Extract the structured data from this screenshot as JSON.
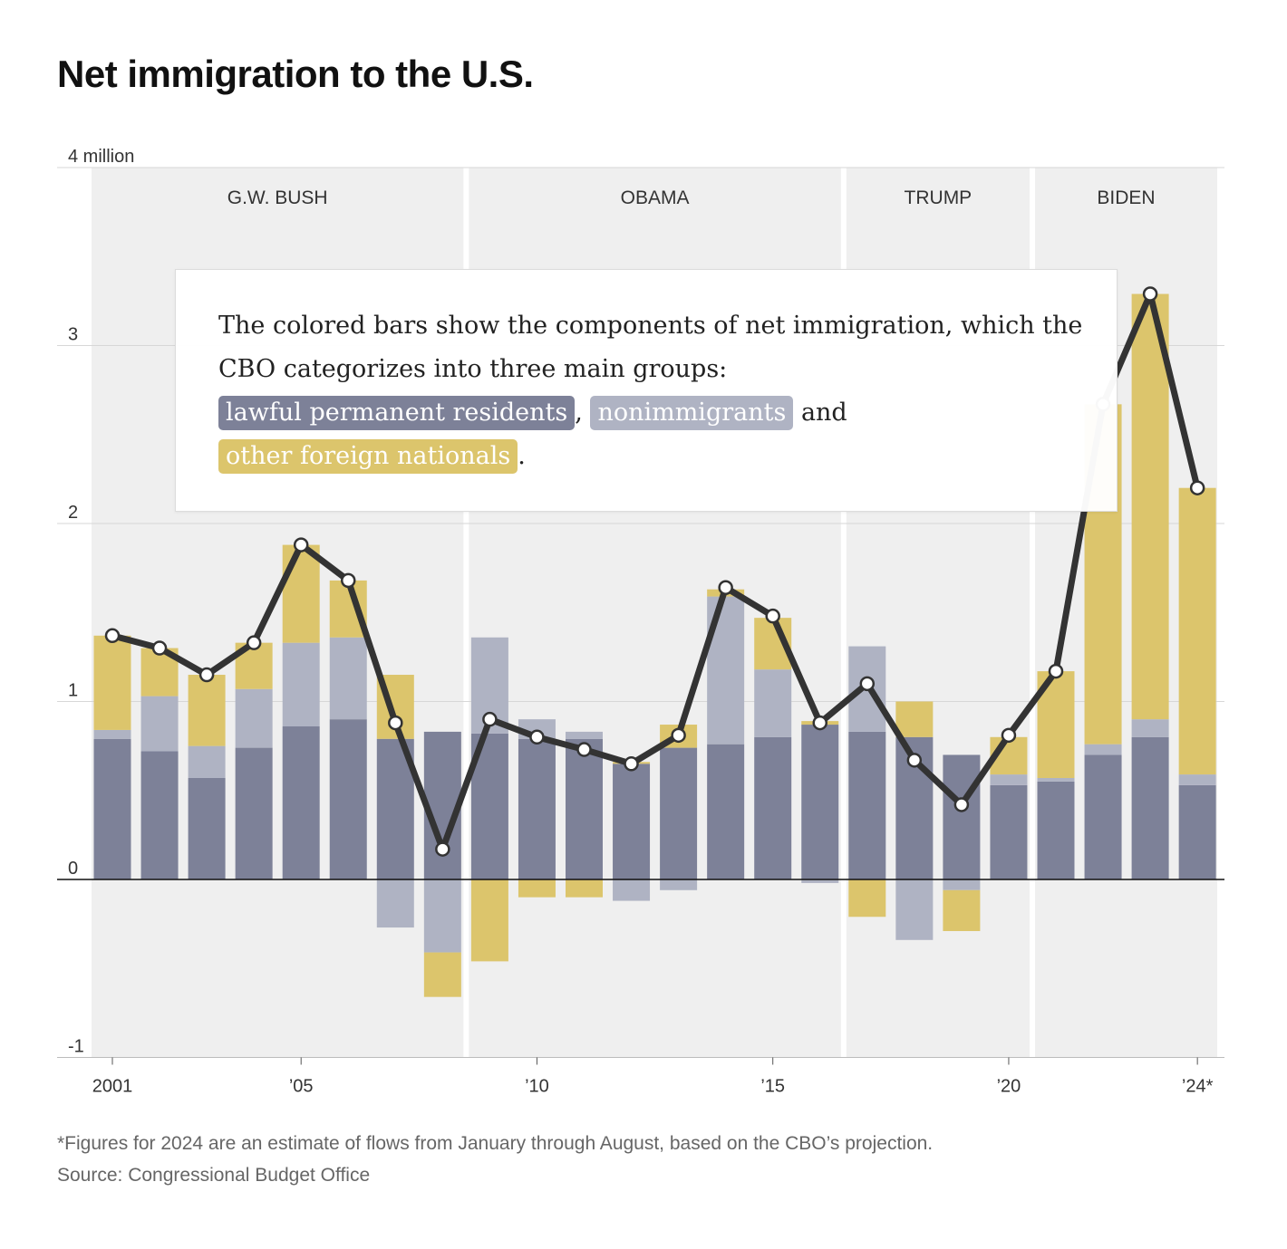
{
  "title": "Net immigration to the U.S.",
  "annotation": {
    "line1": "The colored bars show the components of net immigration, which the",
    "line2": "CBO categorizes into three main groups:",
    "chip_lpr": "lawful permanent residents",
    "comma": ",",
    "chip_non": "nonimmigrants",
    "and": "and",
    "chip_ofn": "other foreign nationals",
    "period": "."
  },
  "footnote": "*Figures for 2024 are an estimate of flows from January through August, based on the CBO’s projection.",
  "source": "Source: Congressional Budget Office",
  "colors": {
    "lpr": "#7d8198",
    "nonimmigrants": "#afb3c3",
    "other": "#dcc56c",
    "line": "#333333",
    "background_panel": "#efefef"
  },
  "chart_data": {
    "type": "bar",
    "stacked": true,
    "title": "Net immigration to the U.S.",
    "ylabel": "4 million",
    "ylim": [
      -1,
      4
    ],
    "y_ticks": [
      -1,
      0,
      1,
      2,
      3,
      4
    ],
    "y_tick_labels": [
      "-1",
      "0",
      "1",
      "2",
      "3",
      "4 million"
    ],
    "x_tick_years": [
      2001,
      2005,
      2010,
      2015,
      2020,
      2024
    ],
    "x_tick_labels": [
      "2001",
      "’05",
      "’10",
      "’15",
      "’20",
      "’24*"
    ],
    "categories": [
      2001,
      2002,
      2003,
      2004,
      2005,
      2006,
      2007,
      2008,
      2009,
      2010,
      2011,
      2012,
      2013,
      2014,
      2015,
      2016,
      2017,
      2018,
      2019,
      2020,
      2021,
      2022,
      2023,
      2024
    ],
    "series": [
      {
        "name": "lawful permanent residents",
        "values": [
          0.79,
          0.72,
          0.57,
          0.74,
          0.86,
          0.9,
          0.79,
          0.83,
          0.82,
          0.79,
          0.79,
          0.65,
          0.74,
          0.76,
          0.8,
          0.87,
          0.83,
          0.8,
          0.7,
          0.53,
          0.55,
          0.7,
          0.8,
          0.53
        ]
      },
      {
        "name": "nonimmigrants",
        "values": [
          0.05,
          0.31,
          0.18,
          0.33,
          0.47,
          0.46,
          -0.27,
          -0.41,
          0.54,
          0.11,
          0.04,
          -0.12,
          -0.06,
          0.83,
          0.38,
          -0.02,
          0.48,
          -0.34,
          -0.06,
          0.06,
          0.02,
          0.06,
          0.1,
          0.06
        ]
      },
      {
        "name": "other foreign nationals",
        "values": [
          0.53,
          0.27,
          0.4,
          0.26,
          0.55,
          0.32,
          0.36,
          -0.25,
          -0.46,
          -0.1,
          -0.1,
          0.01,
          0.13,
          0.04,
          0.29,
          0.02,
          -0.21,
          0.2,
          -0.23,
          0.21,
          0.6,
          1.91,
          2.39,
          1.61
        ]
      }
    ],
    "line": {
      "name": "net immigration",
      "values": [
        1.37,
        1.3,
        1.15,
        1.33,
        1.88,
        1.68,
        0.88,
        0.17,
        0.9,
        0.8,
        0.73,
        0.65,
        0.81,
        1.64,
        1.48,
        0.88,
        1.1,
        0.67,
        0.42,
        0.81,
        1.17,
        2.67,
        3.29,
        2.2
      ]
    },
    "administrations": [
      {
        "name": "G.W. BUSH",
        "start": 2001,
        "end": 2008
      },
      {
        "name": "OBAMA",
        "start": 2009,
        "end": 2016
      },
      {
        "name": "TRUMP",
        "start": 2017,
        "end": 2020
      },
      {
        "name": "BIDEN",
        "start": 2021,
        "end": 2024
      }
    ]
  }
}
